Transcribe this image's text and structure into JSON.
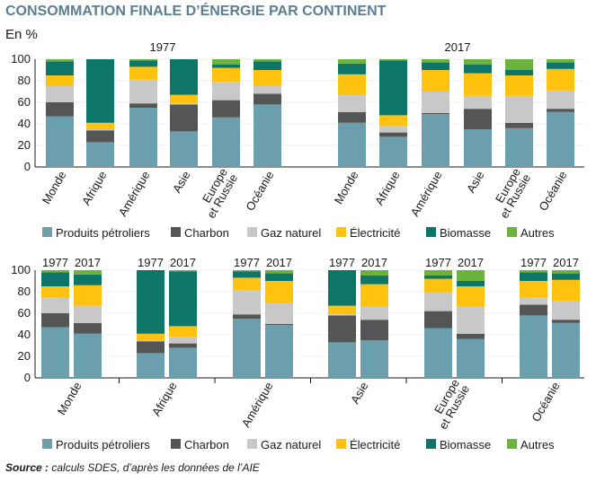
{
  "title": "CONSOMMATION FINALE D’ÉNERGIE PAR CONTINENT",
  "unit_label": "En %",
  "source": {
    "label": "Source :",
    "text": " calculs SDES, d’après les données de l’AIE"
  },
  "colors": {
    "Produits pétroliers": "#6b9fae",
    "Charbon": "#555555",
    "Gaz naturel": "#c8c8c8",
    "Électricité": "#ffc20e",
    "Biomasse": "#0e7669",
    "Autres": "#6bb23f"
  },
  "chart_data": [
    {
      "type": "bar",
      "stacked": true,
      "grouping": "by year",
      "ylim": [
        0,
        100
      ],
      "yticks": [
        "0",
        "20",
        "40",
        "60",
        "80",
        "100"
      ],
      "groups": [
        "1977",
        "2017"
      ],
      "categories": [
        "Monde",
        "Afrique",
        "Amérique",
        "Asie",
        "Europe et Russie",
        "Océanie"
      ],
      "series": [
        {
          "name": "Produits pétroliers",
          "values_1977": [
            47,
            23,
            55,
            33,
            46,
            58
          ],
          "values_2017": [
            41,
            28,
            49,
            35,
            36,
            51
          ]
        },
        {
          "name": "Charbon",
          "values_1977": [
            13,
            11,
            4,
            25,
            16,
            10
          ],
          "values_2017": [
            10,
            4,
            1,
            19,
            5,
            3
          ]
        },
        {
          "name": "Gaz naturel",
          "values_1977": [
            15,
            1,
            22,
            1,
            17,
            7
          ],
          "values_2017": [
            16,
            6,
            20,
            12,
            25,
            17
          ]
        },
        {
          "name": "Électricité",
          "values_1977": [
            10,
            6,
            12,
            8,
            13,
            15
          ],
          "values_2017": [
            19,
            10,
            20,
            21,
            19,
            20
          ]
        },
        {
          "name": "Biomasse",
          "values_1977": [
            13,
            59,
            6,
            33,
            3,
            8
          ],
          "values_2017": [
            10,
            51,
            7,
            8,
            5,
            6
          ]
        },
        {
          "name": "Autres",
          "values_1977": [
            2,
            0,
            1,
            0,
            5,
            2
          ],
          "values_2017": [
            4,
            1,
            3,
            5,
            10,
            3
          ]
        }
      ]
    },
    {
      "type": "bar",
      "stacked": true,
      "grouping": "by continent",
      "ylim": [
        0,
        100
      ],
      "yticks": [
        "0",
        "20",
        "40",
        "60",
        "80",
        "100"
      ],
      "categories": [
        "Monde",
        "Afrique",
        "Amérique",
        "Asie",
        "Europe et Russie",
        "Océanie"
      ],
      "bar_labels": [
        "1977",
        "2017"
      ],
      "series": [
        {
          "name": "Produits pétroliers",
          "values_1977": [
            47,
            23,
            55,
            33,
            46,
            58
          ],
          "values_2017": [
            41,
            28,
            49,
            35,
            36,
            51
          ]
        },
        {
          "name": "Charbon",
          "values_1977": [
            13,
            11,
            4,
            25,
            16,
            10
          ],
          "values_2017": [
            10,
            4,
            1,
            19,
            5,
            3
          ]
        },
        {
          "name": "Gaz naturel",
          "values_1977": [
            15,
            1,
            22,
            1,
            17,
            7
          ],
          "values_2017": [
            16,
            6,
            20,
            12,
            25,
            17
          ]
        },
        {
          "name": "Électricité",
          "values_1977": [
            10,
            6,
            12,
            8,
            13,
            15
          ],
          "values_2017": [
            19,
            10,
            20,
            21,
            19,
            20
          ]
        },
        {
          "name": "Biomasse",
          "values_1977": [
            13,
            59,
            6,
            33,
            3,
            8
          ],
          "values_2017": [
            10,
            51,
            7,
            8,
            5,
            6
          ]
        },
        {
          "name": "Autres",
          "values_1977": [
            2,
            0,
            1,
            0,
            5,
            2
          ],
          "values_2017": [
            4,
            1,
            3,
            5,
            10,
            3
          ]
        }
      ]
    }
  ],
  "legend": [
    "Produits pétroliers",
    "Charbon",
    "Gaz naturel",
    "Électricité",
    "Biomasse",
    "Autres"
  ]
}
